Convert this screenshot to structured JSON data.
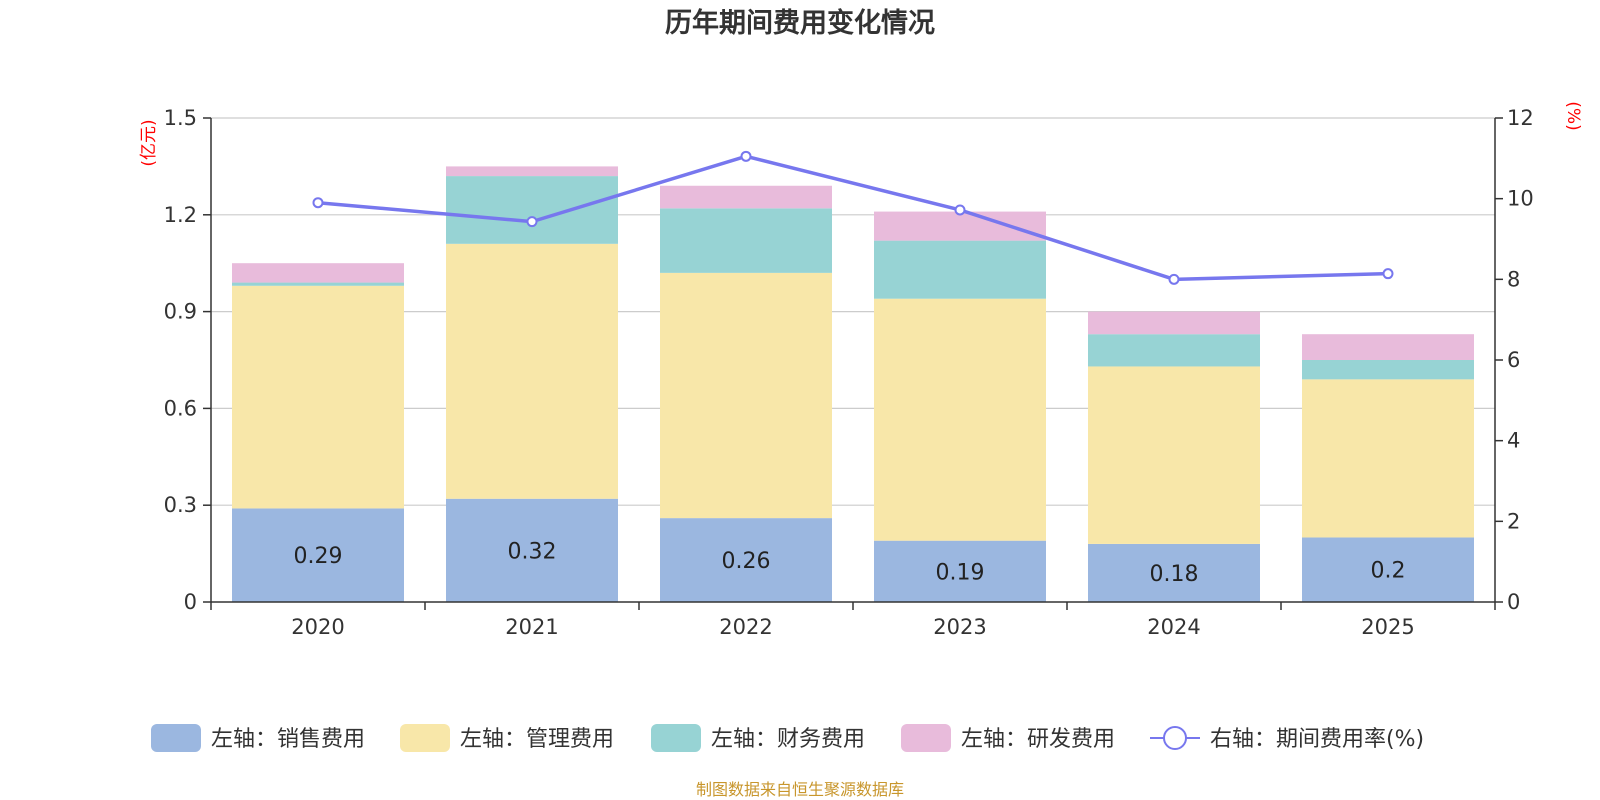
{
  "chart_data": {
    "type": "bar",
    "stacked": true,
    "title": "历年期间费用变化情况",
    "categories": [
      "2020",
      "2021",
      "2022",
      "2023",
      "2024",
      "2025"
    ],
    "left_axis": {
      "unit": "(亿元)",
      "ylim": [
        0,
        1.5
      ],
      "ticks": [
        "0",
        "0.3",
        "0.6",
        "0.9",
        "1.2",
        "1.5"
      ]
    },
    "right_axis": {
      "unit": "(%)",
      "ylim": [
        0,
        12
      ],
      "ticks": [
        "0",
        "2",
        "4",
        "6",
        "8",
        "10",
        "12"
      ]
    },
    "series": [
      {
        "name": "左轴：销售费用",
        "axis": "left",
        "color": "#9bb7e0",
        "values": [
          0.29,
          0.32,
          0.26,
          0.19,
          0.18,
          0.2
        ],
        "labels": [
          "0.29",
          "0.32",
          "0.26",
          "0.19",
          "0.18",
          "0.2"
        ]
      },
      {
        "name": "左轴：管理费用",
        "axis": "left",
        "color": "#f8e7a9",
        "values": [
          0.69,
          0.79,
          0.76,
          0.75,
          0.55,
          0.49
        ]
      },
      {
        "name": "左轴：财务费用",
        "axis": "left",
        "color": "#97d3d4",
        "values": [
          0.01,
          0.21,
          0.2,
          0.18,
          0.1,
          0.06
        ]
      },
      {
        "name": "左轴：研发费用",
        "axis": "left",
        "color": "#e8bbdb",
        "values": [
          0.06,
          0.03,
          0.07,
          0.09,
          0.07,
          0.08
        ]
      },
      {
        "name": "右轴：期间费用率(%)",
        "axis": "right",
        "type": "line",
        "color": "#7777ee",
        "values": [
          9.9,
          9.43,
          11.05,
          9.72,
          8.0,
          8.14
        ]
      }
    ],
    "legend_position": "bottom",
    "grid": true
  },
  "source_note": "制图数据来自恒生聚源数据库"
}
